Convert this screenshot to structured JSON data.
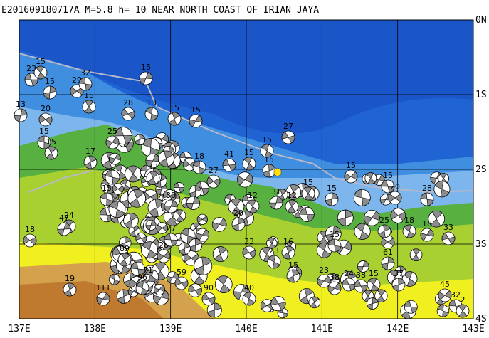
{
  "header": {
    "title": "E201609180717A M=5.8 h= 10 NEAR NORTH COAST OF IRIAN JAYA"
  },
  "map": {
    "lat_labels": [
      "0N",
      "1S",
      "2S",
      "3S",
      "4S"
    ],
    "lon_labels": [
      "137E",
      "138E",
      "139E",
      "140E",
      "141E",
      "142E",
      "143E"
    ]
  },
  "events": [
    {
      "label": "23"
    },
    {
      "label": "15"
    },
    {
      "label": "15"
    },
    {
      "label": "29"
    },
    {
      "label": "32"
    },
    {
      "label": "15"
    },
    {
      "label": "13"
    },
    {
      "label": "20"
    },
    {
      "label": "15"
    },
    {
      "label": "15"
    },
    {
      "label": "15"
    },
    {
      "label": "28"
    },
    {
      "label": "13"
    },
    {
      "label": "15"
    },
    {
      "label": "15"
    },
    {
      "label": "27"
    },
    {
      "label": "15"
    },
    {
      "label": "17"
    },
    {
      "label": "25"
    },
    {
      "label": "41"
    },
    {
      "label": "15"
    },
    {
      "label": "15"
    },
    {
      "label": "15"
    },
    {
      "label": "15"
    },
    {
      "label": "15"
    },
    {
      "label": "15"
    },
    {
      "label": "20"
    },
    {
      "label": "28"
    },
    {
      "label": "24"
    },
    {
      "label": "47"
    },
    {
      "label": "18"
    },
    {
      "label": "15"
    },
    {
      "label": "89"
    },
    {
      "label": "71"
    },
    {
      "label": "59"
    },
    {
      "label": "96"
    },
    {
      "label": "19"
    },
    {
      "label": "111"
    },
    {
      "label": "90"
    },
    {
      "label": "40"
    },
    {
      "label": "15"
    },
    {
      "label": "23"
    },
    {
      "label": "24"
    },
    {
      "label": "15"
    },
    {
      "label": "37"
    },
    {
      "label": "45"
    },
    {
      "label": "32"
    },
    {
      "label": "2"
    },
    {
      "label": "61"
    },
    {
      "label": "15"
    },
    {
      "label": "15"
    },
    {
      "label": "12"
    },
    {
      "label": "31"
    },
    {
      "label": "27"
    },
    {
      "label": "18"
    },
    {
      "label": "32"
    },
    {
      "label": "30"
    },
    {
      "label": "33"
    },
    {
      "label": "23"
    },
    {
      "label": "16"
    },
    {
      "label": "18"
    },
    {
      "label": "33"
    },
    {
      "label": "18"
    },
    {
      "label": "25"
    },
    {
      "label": "38"
    },
    {
      "label": "38"
    },
    {
      "label": "12"
    },
    {
      "label": "20"
    },
    {
      "label": "28"
    },
    {
      "label": "27"
    }
  ]
}
